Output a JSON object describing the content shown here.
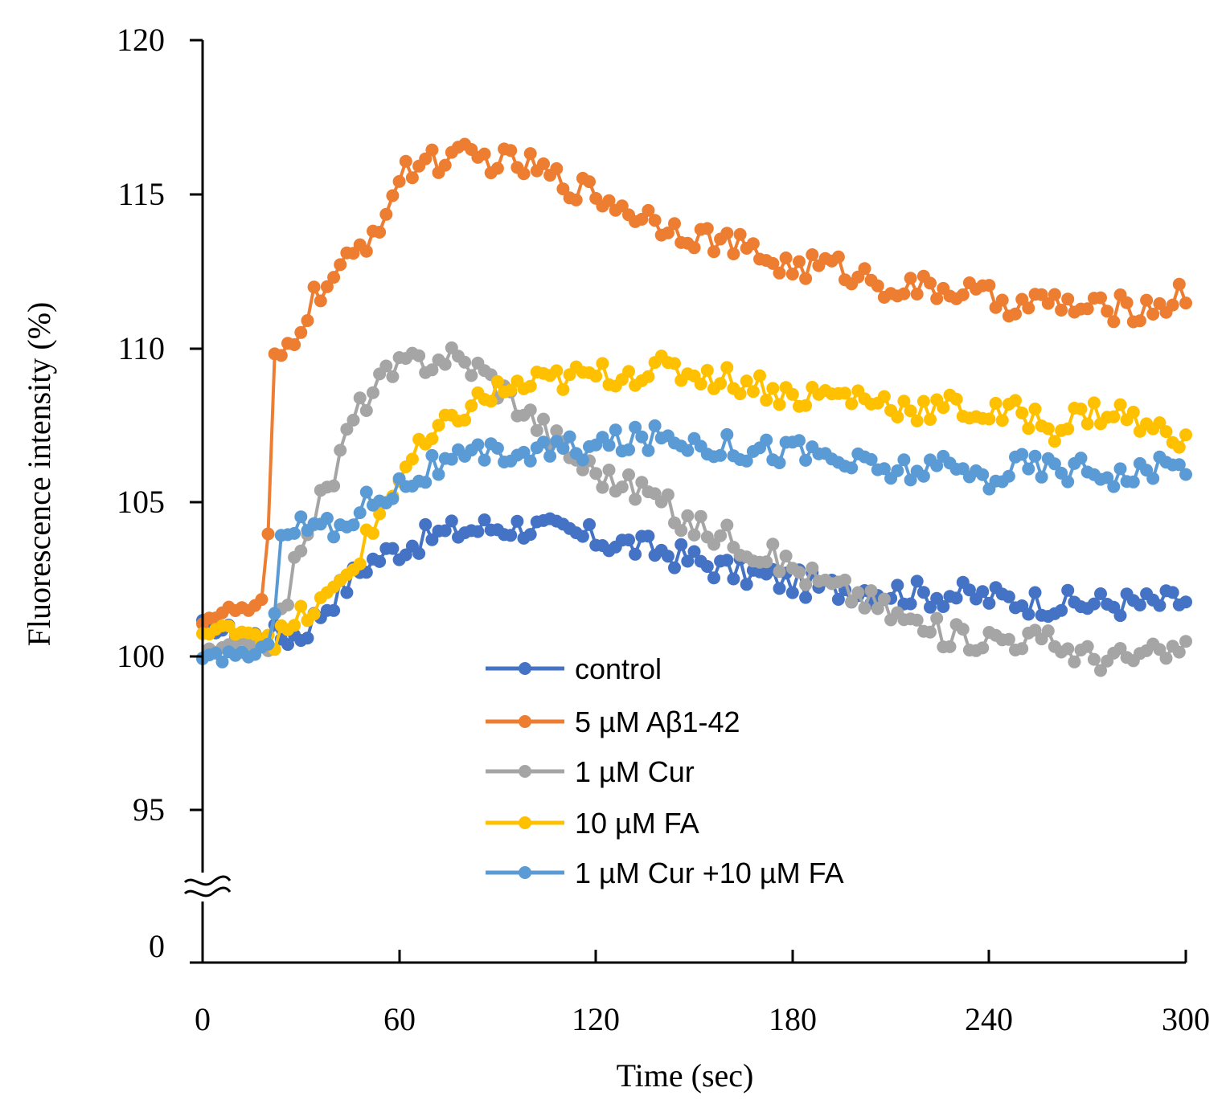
{
  "chart_data": {
    "type": "line",
    "title": "",
    "xlabel": "Time (sec)",
    "ylabel": "Fluorescence intensity (%)",
    "xlim": [
      0,
      300
    ],
    "ylim_upper_segment": [
      95,
      120
    ],
    "axis_break": "≈",
    "x_ticks": [
      "0",
      "60",
      "120",
      "180",
      "240",
      "300"
    ],
    "y_ticks": [
      {
        "label": "0",
        "value": 0
      },
      {
        "label": "95",
        "value": 95
      },
      {
        "label": "100",
        "value": 100
      },
      {
        "label": "105",
        "value": 105
      },
      {
        "label": "110",
        "value": 110
      },
      {
        "label": "115",
        "value": 115
      },
      {
        "label": "120",
        "value": 120
      }
    ],
    "legend_position": "bottom-center",
    "series": [
      {
        "name": "control",
        "color": "#4472C4",
        "keypoints": [
          [
            0,
            101.0
          ],
          [
            10,
            100.8
          ],
          [
            20,
            100.6
          ],
          [
            30,
            100.7
          ],
          [
            40,
            101.9
          ],
          [
            50,
            103.0
          ],
          [
            60,
            103.5
          ],
          [
            70,
            103.9
          ],
          [
            80,
            104.1
          ],
          [
            90,
            104.2
          ],
          [
            100,
            104.2
          ],
          [
            110,
            104.0
          ],
          [
            120,
            103.8
          ],
          [
            130,
            103.6
          ],
          [
            140,
            103.4
          ],
          [
            150,
            103.1
          ],
          [
            160,
            102.8
          ],
          [
            170,
            102.6
          ],
          [
            180,
            102.4
          ],
          [
            190,
            102.2
          ],
          [
            200,
            102.2
          ],
          [
            210,
            102.1
          ],
          [
            220,
            102.0
          ],
          [
            230,
            102.0
          ],
          [
            240,
            101.9
          ],
          [
            250,
            101.8
          ],
          [
            260,
            101.7
          ],
          [
            270,
            101.7
          ],
          [
            280,
            101.7
          ],
          [
            290,
            101.7
          ],
          [
            300,
            101.8
          ]
        ]
      },
      {
        "name": "5 µM Aβ1-42",
        "color": "#ED7D31",
        "keypoints": [
          [
            0,
            101.2
          ],
          [
            10,
            101.5
          ],
          [
            18,
            101.5
          ],
          [
            20,
            103.9
          ],
          [
            22,
            109.4
          ],
          [
            26,
            110.0
          ],
          [
            30,
            110.8
          ],
          [
            35,
            111.8
          ],
          [
            40,
            112.2
          ],
          [
            45,
            112.8
          ],
          [
            50,
            113.5
          ],
          [
            55,
            114.3
          ],
          [
            60,
            115.4
          ],
          [
            65,
            116.0
          ],
          [
            70,
            116.2
          ],
          [
            75,
            116.0
          ],
          [
            80,
            116.2
          ],
          [
            90,
            116.1
          ],
          [
            100,
            115.9
          ],
          [
            110,
            115.4
          ],
          [
            120,
            115.0
          ],
          [
            130,
            114.5
          ],
          [
            140,
            114.1
          ],
          [
            150,
            113.7
          ],
          [
            160,
            113.4
          ],
          [
            170,
            113.0
          ],
          [
            180,
            112.6
          ],
          [
            190,
            112.7
          ],
          [
            200,
            112.4
          ],
          [
            210,
            112.0
          ],
          [
            220,
            111.9
          ],
          [
            230,
            111.9
          ],
          [
            240,
            111.6
          ],
          [
            250,
            111.4
          ],
          [
            260,
            111.5
          ],
          [
            270,
            111.2
          ],
          [
            280,
            111.3
          ],
          [
            290,
            111.3
          ],
          [
            300,
            111.8
          ]
        ]
      },
      {
        "name": "1 µM Cur",
        "color": "#A5A5A5",
        "keypoints": [
          [
            0,
            100.0
          ],
          [
            10,
            100.3
          ],
          [
            20,
            100.6
          ],
          [
            25,
            101.5
          ],
          [
            30,
            103.8
          ],
          [
            35,
            104.8
          ],
          [
            40,
            105.8
          ],
          [
            45,
            107.5
          ],
          [
            50,
            108.4
          ],
          [
            55,
            109.0
          ],
          [
            60,
            109.3
          ],
          [
            65,
            109.6
          ],
          [
            70,
            109.6
          ],
          [
            75,
            109.8
          ],
          [
            80,
            109.5
          ],
          [
            85,
            109.3
          ],
          [
            90,
            108.8
          ],
          [
            95,
            108.3
          ],
          [
            100,
            107.8
          ],
          [
            105,
            107.3
          ],
          [
            110,
            106.8
          ],
          [
            115,
            106.3
          ],
          [
            120,
            106.0
          ],
          [
            125,
            105.7
          ],
          [
            130,
            105.5
          ],
          [
            135,
            105.4
          ],
          [
            140,
            105.0
          ],
          [
            145,
            104.5
          ],
          [
            150,
            104.2
          ],
          [
            160,
            103.9
          ],
          [
            170,
            103.4
          ],
          [
            180,
            102.9
          ],
          [
            190,
            102.3
          ],
          [
            200,
            102.0
          ],
          [
            210,
            101.4
          ],
          [
            220,
            100.9
          ],
          [
            230,
            100.6
          ],
          [
            240,
            100.6
          ],
          [
            250,
            100.6
          ],
          [
            260,
            100.4
          ],
          [
            270,
            100.0
          ],
          [
            280,
            99.9
          ],
          [
            290,
            100.0
          ],
          [
            300,
            100.2
          ]
        ]
      },
      {
        "name": "10 µM FA",
        "color": "#FFC000",
        "keypoints": [
          [
            0,
            100.7
          ],
          [
            10,
            100.9
          ],
          [
            20,
            100.7
          ],
          [
            25,
            100.6
          ],
          [
            30,
            101.2
          ],
          [
            35,
            101.6
          ],
          [
            40,
            102.0
          ],
          [
            45,
            102.8
          ],
          [
            50,
            103.7
          ],
          [
            55,
            104.8
          ],
          [
            60,
            105.8
          ],
          [
            65,
            106.5
          ],
          [
            70,
            107.0
          ],
          [
            75,
            107.5
          ],
          [
            80,
            108.0
          ],
          [
            85,
            108.3
          ],
          [
            90,
            108.6
          ],
          [
            100,
            108.8
          ],
          [
            110,
            109.0
          ],
          [
            120,
            109.1
          ],
          [
            130,
            109.2
          ],
          [
            140,
            109.3
          ],
          [
            150,
            109.2
          ],
          [
            160,
            109.0
          ],
          [
            170,
            108.8
          ],
          [
            180,
            108.4
          ],
          [
            190,
            108.5
          ],
          [
            200,
            108.4
          ],
          [
            210,
            108.2
          ],
          [
            220,
            108.0
          ],
          [
            230,
            108.1
          ],
          [
            240,
            107.8
          ],
          [
            250,
            107.9
          ],
          [
            260,
            107.4
          ],
          [
            270,
            107.9
          ],
          [
            280,
            107.9
          ],
          [
            290,
            107.3
          ],
          [
            300,
            107.2
          ]
        ]
      },
      {
        "name": "1 µM Cur +10 µM FA",
        "color": "#5B9BD5",
        "keypoints": [
          [
            0,
            99.8
          ],
          [
            10,
            100.1
          ],
          [
            20,
            100.0
          ],
          [
            22,
            101.8
          ],
          [
            24,
            104.3
          ],
          [
            30,
            104.2
          ],
          [
            35,
            104.3
          ],
          [
            40,
            104.0
          ],
          [
            45,
            104.5
          ],
          [
            50,
            105.0
          ],
          [
            55,
            105.3
          ],
          [
            60,
            105.5
          ],
          [
            65,
            105.8
          ],
          [
            70,
            106.1
          ],
          [
            75,
            106.2
          ],
          [
            80,
            106.3
          ],
          [
            90,
            106.6
          ],
          [
            100,
            106.6
          ],
          [
            110,
            106.7
          ],
          [
            120,
            106.8
          ],
          [
            130,
            107.0
          ],
          [
            140,
            107.1
          ],
          [
            150,
            107.0
          ],
          [
            160,
            106.8
          ],
          [
            170,
            106.7
          ],
          [
            180,
            106.7
          ],
          [
            190,
            106.5
          ],
          [
            200,
            106.2
          ],
          [
            210,
            106.0
          ],
          [
            220,
            106.1
          ],
          [
            230,
            106.0
          ],
          [
            240,
            105.8
          ],
          [
            250,
            106.2
          ],
          [
            260,
            106.1
          ],
          [
            270,
            106.1
          ],
          [
            280,
            105.9
          ],
          [
            290,
            106.0
          ],
          [
            300,
            106.2
          ]
        ]
      }
    ]
  }
}
